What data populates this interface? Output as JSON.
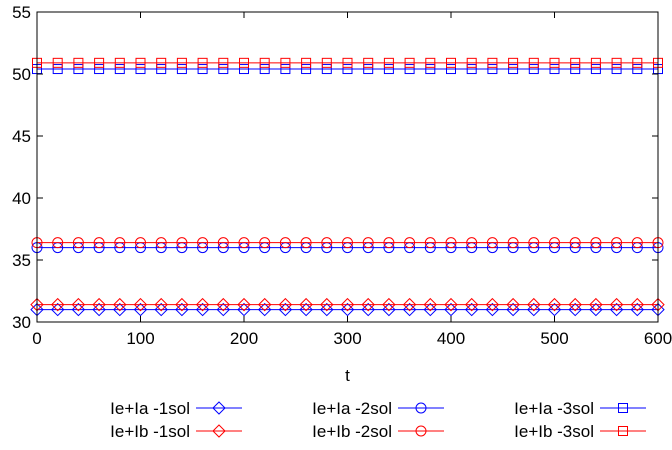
{
  "chart_data": {
    "type": "line",
    "xlabel": "t",
    "ylabel": "",
    "xlim": [
      0,
      600
    ],
    "ylim": [
      30,
      55
    ],
    "xticks": [
      0,
      100,
      200,
      300,
      400,
      500,
      600
    ],
    "yticks": [
      30,
      35,
      40,
      45,
      50,
      55
    ],
    "grid": false,
    "legend_placement": "bottom",
    "x": [
      0,
      20,
      40,
      60,
      80,
      100,
      120,
      140,
      160,
      180,
      200,
      220,
      240,
      260,
      280,
      300,
      320,
      340,
      360,
      380,
      400,
      420,
      440,
      460,
      480,
      500,
      520,
      540,
      560,
      580,
      600
    ],
    "series": [
      {
        "name": "Ie+Ia -1sol",
        "color": "#0000ff",
        "marker": "diamond",
        "value": 31.0
      },
      {
        "name": "Ie+Ib -1sol",
        "color": "#ff0000",
        "marker": "diamond",
        "value": 31.4
      },
      {
        "name": "Ie+Ia -2sol",
        "color": "#0000ff",
        "marker": "circle",
        "value": 36.0
      },
      {
        "name": "Ie+Ib -2sol",
        "color": "#ff0000",
        "marker": "circle",
        "value": 36.4
      },
      {
        "name": "Ie+Ia -3sol",
        "color": "#0000ff",
        "marker": "square",
        "value": 50.4
      },
      {
        "name": "Ie+Ib -3sol",
        "color": "#ff0000",
        "marker": "square",
        "value": 50.9
      }
    ]
  }
}
